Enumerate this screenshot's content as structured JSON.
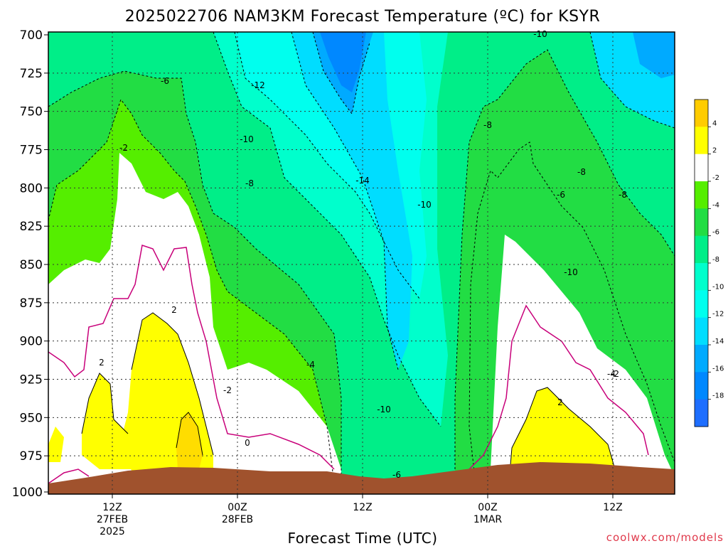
{
  "chart_data": {
    "type": "heatmap",
    "title": "2025022706 NAM3KM Forecast Temperature (ºC) for KSYR",
    "xlabel": "Forecast Time (UTC)",
    "ylabel": "",
    "y_scale": "pressure (inverted)",
    "ylim": [
      1000,
      700
    ],
    "y_ticks": [
      "700",
      "725",
      "750",
      "775",
      "800",
      "825",
      "850",
      "875",
      "900",
      "925",
      "950",
      "975",
      "1000"
    ],
    "x_ticks": [
      {
        "line1": "12Z",
        "line2": "27FEB",
        "line3": "2025"
      },
      {
        "line1": "00Z",
        "line2": "28FEB",
        "line3": ""
      },
      {
        "line1": "12Z",
        "line2": "",
        "line3": ""
      },
      {
        "line1": "00Z",
        "line2": "1MAR",
        "line3": ""
      },
      {
        "line1": "12Z",
        "line2": "",
        "line3": ""
      }
    ],
    "grid": true,
    "colorbar": {
      "position": "right",
      "labels": [
        "4",
        "2",
        "-2",
        "-4",
        "-6",
        "-8",
        "-10",
        "-12",
        "-14",
        "-16",
        "-18"
      ],
      "colors": [
        "#ffcc00",
        "#ffff00",
        "#ffffff",
        "#55ee00",
        "#22dd44",
        "#00ee88",
        "#00ffcc",
        "#00ffee",
        "#00ddff",
        "#00aaff",
        "#0088ff",
        "#1e6eff"
      ]
    },
    "contour_labels": [
      "-6",
      "-12",
      "-10",
      "-10",
      "-8",
      "-2",
      "-8",
      "-14",
      "-10",
      "-8",
      "-6",
      "-8",
      "-10",
      "-4",
      "2",
      "2",
      "-2",
      "-4",
      "-10",
      "0",
      "-2",
      "2",
      "-6"
    ],
    "terrain_color": "#a0522d",
    "annotations": [
      "coolwx.com/models"
    ]
  }
}
